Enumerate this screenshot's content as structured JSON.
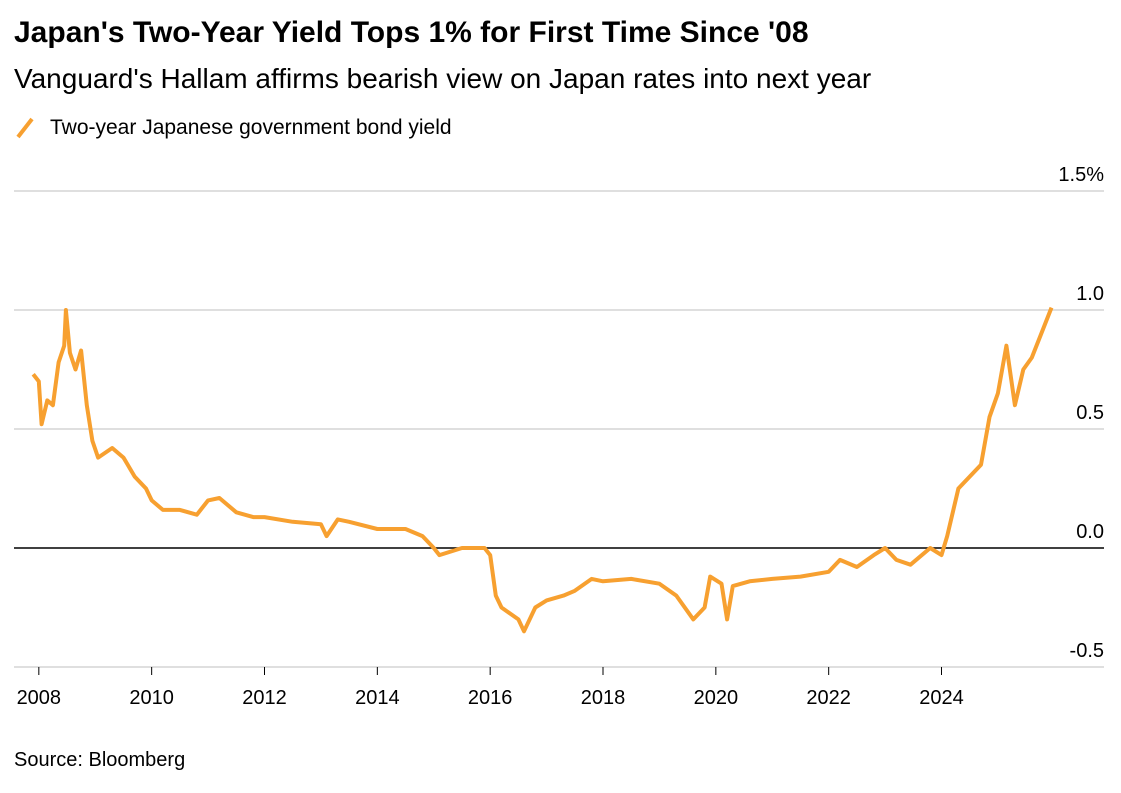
{
  "chart_data": {
    "type": "line",
    "title": "Japan's Two-Year Yield Tops 1% for First Time Since '08",
    "subtitle": "Vanguard's Hallam affirms bearish view on Japan rates into next year",
    "source": "Source: Bloomberg",
    "series": [
      {
        "name": "Two-year Japanese government bond yield",
        "color": "#f7a030",
        "x": [
          2007.9,
          2008.0,
          2008.05,
          2008.15,
          2008.25,
          2008.35,
          2008.45,
          2008.48,
          2008.55,
          2008.65,
          2008.75,
          2008.85,
          2008.95,
          2009.05,
          2009.3,
          2009.5,
          2009.7,
          2009.9,
          2010.0,
          2010.2,
          2010.5,
          2010.8,
          2011.0,
          2011.2,
          2011.5,
          2011.8,
          2012.0,
          2012.5,
          2013.0,
          2013.1,
          2013.3,
          2013.5,
          2014.0,
          2014.5,
          2014.8,
          2015.0,
          2015.1,
          2015.5,
          2015.9,
          2016.0,
          2016.1,
          2016.2,
          2016.5,
          2016.6,
          2016.8,
          2017.0,
          2017.3,
          2017.5,
          2017.8,
          2018.0,
          2018.5,
          2019.0,
          2019.3,
          2019.6,
          2019.8,
          2019.9,
          2020.1,
          2020.2,
          2020.3,
          2020.6,
          2021.0,
          2021.5,
          2022.0,
          2022.2,
          2022.5,
          2022.8,
          2023.0,
          2023.2,
          2023.45,
          2023.8,
          2024.0,
          2024.1,
          2024.3,
          2024.5,
          2024.7,
          2024.85,
          2025.0,
          2025.15,
          2025.3,
          2025.45,
          2025.6,
          2025.8,
          2025.95
        ],
        "values": [
          0.73,
          0.7,
          0.52,
          0.62,
          0.6,
          0.78,
          0.85,
          1.0,
          0.82,
          0.75,
          0.83,
          0.6,
          0.45,
          0.38,
          0.42,
          0.38,
          0.3,
          0.25,
          0.2,
          0.16,
          0.16,
          0.14,
          0.2,
          0.21,
          0.15,
          0.13,
          0.13,
          0.11,
          0.1,
          0.05,
          0.12,
          0.11,
          0.08,
          0.08,
          0.05,
          0.0,
          -0.03,
          0.0,
          0.0,
          -0.03,
          -0.2,
          -0.25,
          -0.3,
          -0.35,
          -0.25,
          -0.22,
          -0.2,
          -0.18,
          -0.13,
          -0.14,
          -0.13,
          -0.15,
          -0.2,
          -0.3,
          -0.25,
          -0.12,
          -0.15,
          -0.3,
          -0.16,
          -0.14,
          -0.13,
          -0.12,
          -0.1,
          -0.05,
          -0.08,
          -0.03,
          0.0,
          -0.05,
          -0.07,
          0.0,
          -0.03,
          0.05,
          0.25,
          0.3,
          0.35,
          0.55,
          0.65,
          0.85,
          0.6,
          0.75,
          0.8,
          0.92,
          1.01
        ]
      }
    ],
    "xlim": [
      2007.56,
      2026.88
    ],
    "xticks": [
      2008,
      2010,
      2012,
      2014,
      2016,
      2018,
      2020,
      2022,
      2024
    ],
    "ylim": [
      -0.5,
      1.5
    ],
    "yticks": [
      -0.5,
      {
        "value": 0,
        "label": "0.0"
      },
      0.5,
      {
        "value": 1,
        "label": "1.0"
      },
      {
        "value": 1.5,
        "label": "1.5%"
      }
    ],
    "grid": true
  }
}
